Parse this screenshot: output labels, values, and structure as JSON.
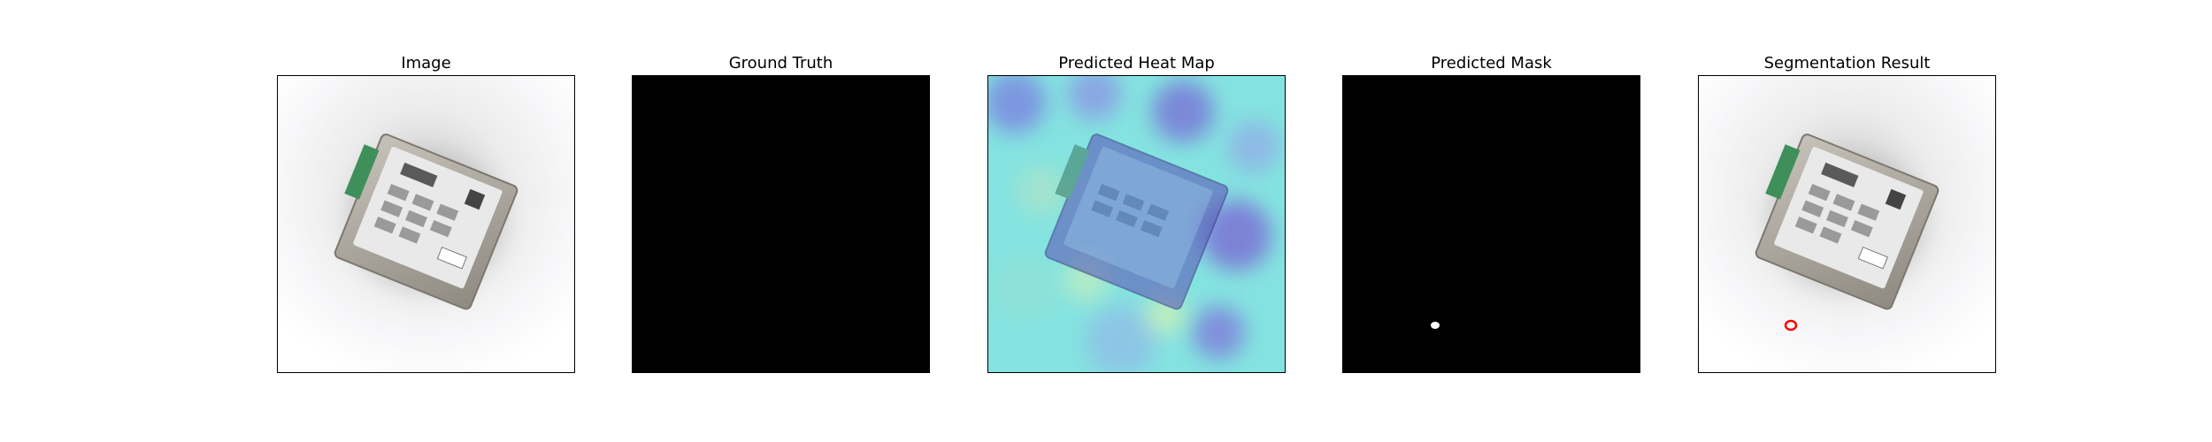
{
  "panels": [
    {
      "title": "Image"
    },
    {
      "title": "Ground Truth"
    },
    {
      "title": "Predicted Heat Map"
    },
    {
      "title": "Predicted Mask"
    },
    {
      "title": "Segmentation Result"
    }
  ],
  "colors": {
    "background": "#ffffff",
    "mask_background": "#000000",
    "mask_foreground": "#ffffff",
    "heatmap_low": "#7fe6e6",
    "heatmap_mid": "#6f72d8",
    "segmentation_outline": "#ff0000",
    "device_body": "#a7a39a",
    "device_label": "#e9e9e9",
    "terminal_block": "#3f8f5a"
  }
}
